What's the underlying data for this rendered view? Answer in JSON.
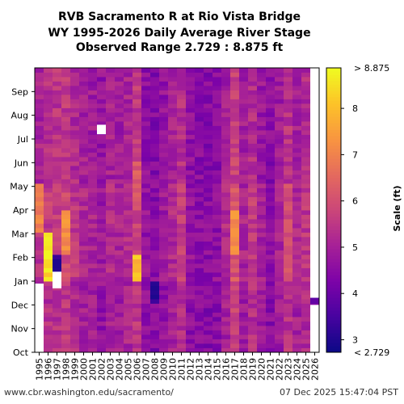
{
  "title_lines": [
    "RVB Sacramento R at Rio Vista Bridge",
    "WY 1995-2026 Daily Average River Stage",
    "Observed Range 2.729 : 8.875 ft"
  ],
  "footer": {
    "source_url": "www.cbr.washington.edu/sacramento/",
    "timestamp": "07 Dec 2025 15:47:04 PST"
  },
  "chart_data": {
    "type": "heatmap",
    "colormap": "plasma",
    "x_categories": [
      "1995",
      "1996",
      "1997",
      "1998",
      "1999",
      "2000",
      "2001",
      "2002",
      "2003",
      "2004",
      "2005",
      "2006",
      "2007",
      "2008",
      "2009",
      "2010",
      "2011",
      "2012",
      "2013",
      "2014",
      "2015",
      "2016",
      "2017",
      "2018",
      "2019",
      "2020",
      "2021",
      "2022",
      "2023",
      "2024",
      "2025",
      "2026"
    ],
    "y_tick_labels": [
      "Oct",
      "Nov",
      "Dec",
      "Jan",
      "Feb",
      "Mar",
      "Apr",
      "May",
      "Jun",
      "Jul",
      "Aug",
      "Sep"
    ],
    "colorbar": {
      "label": "Scale (ft)",
      "min": 2.729,
      "max": 8.875,
      "top_label": "> 8.875",
      "bottom_label": "< 2.729",
      "ticks": [
        3,
        4,
        5,
        6,
        7,
        8
      ]
    },
    "typical_stage_ft": 4.9,
    "year_offsets_ft": [
      0.2,
      0.4,
      0.5,
      0.6,
      0.3,
      0.1,
      0.0,
      -0.2,
      0.1,
      0.0,
      0.2,
      0.6,
      -0.3,
      -0.5,
      -0.2,
      0.1,
      0.4,
      -0.3,
      -0.4,
      -0.5,
      -0.4,
      0.1,
      0.8,
      0.0,
      0.4,
      -0.1,
      -0.4,
      0.0,
      0.5,
      0.1,
      0.3,
      -0.4
    ],
    "high_water_events": [
      {
        "year": "1995",
        "month": "Mar-Apr",
        "stage_ft": 7.4
      },
      {
        "year": "1996",
        "month": "Jan-Feb",
        "stage_ft": 8.9
      },
      {
        "year": "1997",
        "month": "Jan",
        "stage_ft": 8.9
      },
      {
        "year": "1998",
        "month": "Feb-Mar",
        "stage_ft": 7.6
      },
      {
        "year": "2006",
        "month": "Jan",
        "stage_ft": 8.4
      },
      {
        "year": "2006",
        "month": "Apr-May",
        "stage_ft": 6.6
      },
      {
        "year": "2017",
        "month": "Feb-Mar",
        "stage_ft": 7.6
      },
      {
        "year": "2023",
        "month": "Jan-Apr",
        "stage_ft": 6.4
      }
    ],
    "low_water_events": [
      {
        "year": "2008",
        "month": "Dec",
        "stage_ft": 2.9
      },
      {
        "year": "1997",
        "month": "Jan",
        "stage_ft": 2.8
      },
      {
        "year": "2026",
        "month": "Dec",
        "stage_ft": 3.4
      }
    ]
  }
}
